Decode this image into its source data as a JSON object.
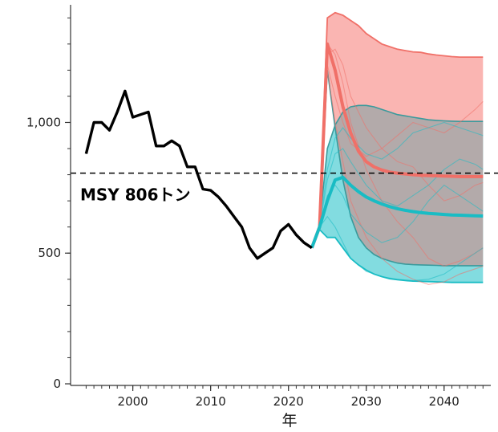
{
  "chart_data": {
    "type": "line",
    "xlabel": "年",
    "ylabel": "",
    "xlim": [
      1992,
      2046
    ],
    "ylim": [
      0,
      1450
    ],
    "x_ticks": [
      2000,
      2010,
      2020,
      2030,
      2040
    ],
    "y_ticks": [
      0,
      500,
      1000
    ],
    "y_tick_labels": [
      "0",
      "500",
      "1,000"
    ],
    "grid": false,
    "reference_line": {
      "value": 806,
      "label": "MSY 806トン",
      "style": "dashed"
    },
    "colors": {
      "observed": "#000000",
      "scenario_a": "#f07068",
      "scenario_a_band": "#f9a8a4",
      "scenario_b": "#19bcc4",
      "scenario_b_band": "#6cd6da",
      "band_edge_teal": "#3a9a9c",
      "overlap": "#b3aaaa"
    },
    "series": [
      {
        "role": "observed",
        "x": [
          1994,
          1995,
          1996,
          1997,
          1998,
          1999,
          2000,
          2001,
          2002,
          2003,
          2004,
          2005,
          2006,
          2007,
          2008,
          2009,
          2010,
          2011,
          2012,
          2013,
          2014,
          2015,
          2016,
          2017,
          2018,
          2019,
          2020,
          2021,
          2022,
          2023
        ],
        "values": [
          880,
          1000,
          1000,
          970,
          1040,
          1120,
          1020,
          1030,
          1040,
          910,
          910,
          930,
          910,
          830,
          830,
          745,
          740,
          715,
          680,
          640,
          600,
          520,
          480,
          500,
          520,
          585,
          610,
          570,
          540,
          520
        ]
      },
      {
        "role": "scenario_a_median",
        "x": [
          2023,
          2024,
          2025,
          2026,
          2027,
          2028,
          2029,
          2030,
          2031,
          2032,
          2033,
          2034,
          2035,
          2036,
          2037,
          2038,
          2039,
          2040,
          2041,
          2042,
          2043,
          2044,
          2045
        ],
        "values": [
          520,
          600,
          1300,
          1200,
          1060,
          960,
          890,
          850,
          830,
          818,
          810,
          806,
          803,
          800,
          798,
          797,
          796,
          795,
          794,
          793,
          793,
          793,
          793
        ]
      },
      {
        "role": "scenario_a_band",
        "x": [
          2023,
          2024,
          2025,
          2026,
          2027,
          2028,
          2029,
          2030,
          2031,
          2032,
          2033,
          2034,
          2035,
          2036,
          2037,
          2038,
          2039,
          2040,
          2041,
          2042,
          2043,
          2044,
          2045
        ],
        "upper": [
          520,
          610,
          1400,
          1420,
          1410,
          1390,
          1370,
          1340,
          1320,
          1300,
          1290,
          1280,
          1275,
          1270,
          1268,
          1262,
          1258,
          1255,
          1252,
          1250,
          1250,
          1250,
          1250
        ],
        "lower": [
          520,
          590,
          1200,
          980,
          780,
          640,
          560,
          520,
          495,
          480,
          470,
          462,
          458,
          456,
          455,
          454,
          453,
          452,
          452,
          452,
          452,
          452,
          452
        ]
      },
      {
        "role": "scenario_b_median",
        "x": [
          2023,
          2024,
          2025,
          2026,
          2027,
          2028,
          2029,
          2030,
          2031,
          2032,
          2033,
          2034,
          2035,
          2036,
          2037,
          2038,
          2039,
          2040,
          2041,
          2042,
          2043,
          2044,
          2045
        ],
        "values": [
          520,
          600,
          700,
          780,
          790,
          760,
          735,
          715,
          700,
          688,
          678,
          670,
          664,
          659,
          655,
          652,
          650,
          648,
          646,
          645,
          644,
          643,
          642
        ]
      },
      {
        "role": "scenario_b_band",
        "x": [
          2023,
          2024,
          2025,
          2026,
          2027,
          2028,
          2029,
          2030,
          2031,
          2032,
          2033,
          2034,
          2035,
          2036,
          2037,
          2038,
          2039,
          2040,
          2041,
          2042,
          2043,
          2044,
          2045
        ],
        "upper": [
          520,
          610,
          900,
          990,
          1040,
          1060,
          1065,
          1065,
          1060,
          1050,
          1040,
          1030,
          1025,
          1020,
          1015,
          1010,
          1008,
          1006,
          1005,
          1004,
          1004,
          1004,
          1004
        ],
        "lower": [
          520,
          590,
          560,
          560,
          520,
          480,
          455,
          435,
          420,
          410,
          402,
          398,
          395,
          393,
          392,
          391,
          390,
          389,
          388,
          388,
          388,
          388,
          388
        ]
      }
    ],
    "sample_paths": [
      {
        "color_key": "scenario_a",
        "x": [
          2023,
          2024,
          2025,
          2026,
          2027,
          2028,
          2030,
          2032,
          2034,
          2036,
          2038,
          2040,
          2042,
          2044,
          2045
        ],
        "values": [
          520,
          600,
          1260,
          1280,
          1220,
          1100,
          980,
          900,
          850,
          830,
          760,
          700,
          720,
          760,
          770
        ]
      },
      {
        "color_key": "scenario_a",
        "x": [
          2023,
          2024,
          2025,
          2026,
          2027,
          2028,
          2030,
          2032,
          2034,
          2036,
          2038,
          2040,
          2042,
          2044,
          2045
        ],
        "values": [
          520,
          600,
          1220,
          1100,
          1000,
          920,
          870,
          900,
          950,
          1000,
          980,
          960,
          1000,
          1050,
          1080
        ]
      },
      {
        "color_key": "scenario_a",
        "x": [
          2023,
          2024,
          2025,
          2026,
          2027,
          2028,
          2030,
          2032,
          2034,
          2036,
          2038,
          2040,
          2042,
          2044,
          2045
        ],
        "values": [
          520,
          600,
          1300,
          1260,
          1150,
          1000,
          820,
          700,
          620,
          560,
          480,
          450,
          470,
          500,
          520
        ]
      },
      {
        "color_key": "scenario_a",
        "x": [
          2023,
          2024,
          2025,
          2026,
          2027,
          2028,
          2030,
          2032,
          2034,
          2036,
          2038,
          2040,
          2042,
          2044,
          2045
        ],
        "values": [
          520,
          600,
          1200,
          1000,
          850,
          700,
          560,
          480,
          430,
          400,
          380,
          390,
          420,
          440,
          450
        ]
      },
      {
        "color_key": "scenario_b",
        "x": [
          2023,
          2024,
          2025,
          2026,
          2027,
          2028,
          2030,
          2032,
          2034,
          2036,
          2038,
          2040,
          2042,
          2044,
          2045
        ],
        "values": [
          520,
          600,
          780,
          880,
          900,
          850,
          760,
          700,
          680,
          720,
          760,
          820,
          860,
          840,
          820
        ]
      },
      {
        "color_key": "scenario_b",
        "x": [
          2023,
          2024,
          2025,
          2026,
          2027,
          2028,
          2030,
          2032,
          2034,
          2036,
          2038,
          2040,
          2042,
          2044,
          2045
        ],
        "values": [
          520,
          600,
          720,
          760,
          720,
          650,
          580,
          540,
          560,
          620,
          700,
          760,
          720,
          680,
          660
        ]
      },
      {
        "color_key": "scenario_b",
        "x": [
          2023,
          2024,
          2025,
          2026,
          2027,
          2028,
          2030,
          2032,
          2034,
          2036,
          2038,
          2040,
          2042,
          2044,
          2045
        ],
        "values": [
          520,
          600,
          640,
          600,
          540,
          480,
          430,
          410,
          400,
          395,
          400,
          420,
          460,
          500,
          520
        ]
      },
      {
        "color_key": "scenario_b",
        "x": [
          2023,
          2024,
          2025,
          2026,
          2027,
          2028,
          2030,
          2032,
          2034,
          2036,
          2038,
          2040,
          2042,
          2044,
          2045
        ],
        "values": [
          520,
          600,
          820,
          940,
          980,
          940,
          880,
          860,
          900,
          960,
          980,
          1000,
          980,
          960,
          950
        ]
      }
    ]
  }
}
